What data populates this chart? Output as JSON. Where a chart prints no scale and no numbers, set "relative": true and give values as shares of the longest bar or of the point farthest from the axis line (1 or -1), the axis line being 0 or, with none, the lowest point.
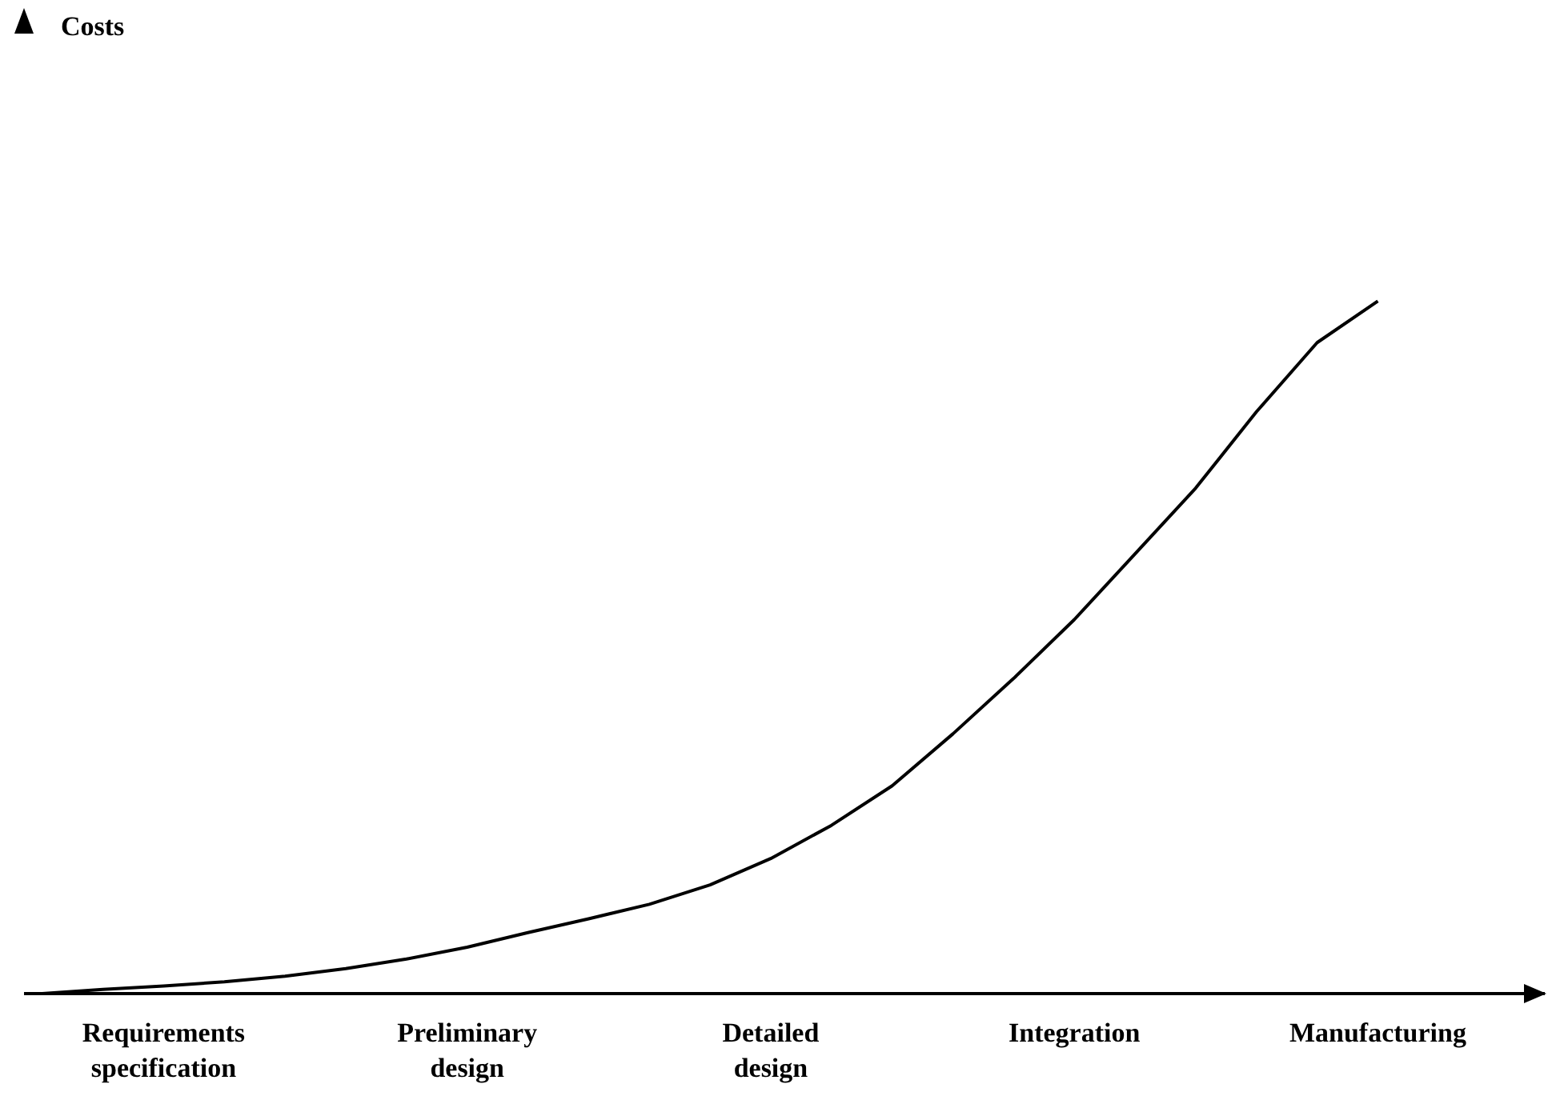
{
  "chart_data": {
    "type": "line",
    "relative": true,
    "annotations": [
      "Costs"
    ],
    "categories": [
      null,
      null,
      "Requirements specification",
      null,
      null,
      null,
      null,
      "Preliminary design",
      null,
      null,
      null,
      null,
      "Detailed design",
      null,
      null,
      null,
      null,
      "Integration",
      null,
      null,
      null,
      null,
      "Manufacturing"
    ],
    "series": [
      {
        "color": "#000000",
        "values": [
          0,
          0.006,
          0.011,
          0.017,
          0.025,
          0.036,
          0.05,
          0.067,
          0.088,
          0.108,
          0.129,
          0.157,
          0.195,
          0.243,
          0.3,
          0.375,
          0.455,
          0.54,
          0.635,
          0.73,
          0.84,
          0.94,
          1.0
        ]
      }
    ],
    "marker": "none",
    "line_style": "solid",
    "grid": false
  }
}
